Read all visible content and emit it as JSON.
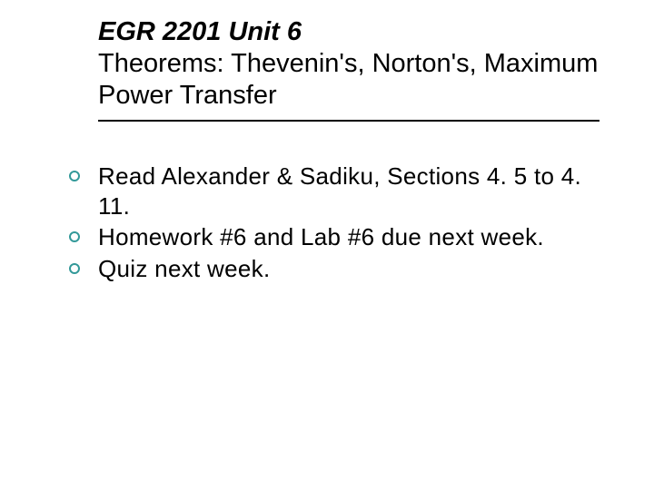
{
  "slide": {
    "title": {
      "line1": "EGR 2201 Unit 6",
      "rest": "Theorems: Thevenin's, Norton's, Maximum Power Transfer"
    },
    "bullets": [
      "Read Alexander & Sadiku, Sections 4. 5 to 4. 11.",
      "Homework #6 and Lab #6 due next week.",
      "Quiz next week."
    ],
    "styling": {
      "background_color": "#ffffff",
      "title_fontsize": 29,
      "title_line1_style": "italic bold",
      "title_color": "#000000",
      "divider_color": "#000000",
      "divider_width": 2,
      "body_fontsize": 26,
      "body_font": "Verdana",
      "body_color": "#000000",
      "bullet_marker": {
        "shape": "open-circle",
        "border_color": "#339999",
        "border_width": 2,
        "diameter": 12
      }
    }
  }
}
